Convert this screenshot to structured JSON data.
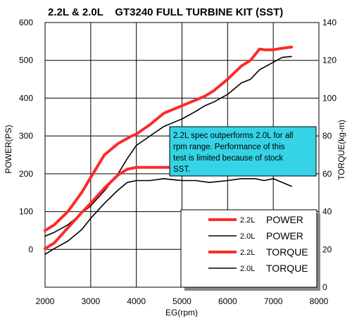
{
  "chart_data": {
    "type": "line",
    "title": "2.2L & 2.0L    GT3240 FULL TURBINE KIT (SST)",
    "xlabel": "EG(rpm)",
    "ylabel_left": "POWER(PS)",
    "ylabel_right": "TORQUE(kg-m)",
    "xlim": [
      2000,
      8000
    ],
    "ylim_left": [
      -100,
      600
    ],
    "ylim_right": [
      0,
      140
    ],
    "x_ticks": [
      "2000",
      "3000",
      "4000",
      "5000",
      "6000",
      "7000",
      "8000"
    ],
    "y_left_ticks": [
      "0",
      "100",
      "200",
      "300",
      "400",
      "500",
      "600"
    ],
    "y_right_ticks": [
      "0",
      "20",
      "40",
      "60",
      "80",
      "100",
      "120",
      "140"
    ],
    "grid": true,
    "legend_position": "bottom-right",
    "annotation": {
      "lines": [
        "2.2L spec outperforms 2.0L for all",
        "rpm range. Performance of this",
        "test is limited because of stock",
        "SST."
      ],
      "background": "#35d3e5"
    },
    "series": [
      {
        "name": "2.2L POWER",
        "legend_engine": "2.2L",
        "legend_label": "POWER",
        "axis": "left",
        "color": "#ff2a2a",
        "points": [
          [
            2000,
            50
          ],
          [
            2200,
            65
          ],
          [
            2500,
            100
          ],
          [
            2800,
            150
          ],
          [
            3000,
            190
          ],
          [
            3300,
            250
          ],
          [
            3600,
            280
          ],
          [
            3900,
            300
          ],
          [
            4000,
            305
          ],
          [
            4300,
            330
          ],
          [
            4600,
            360
          ],
          [
            5000,
            380
          ],
          [
            5300,
            395
          ],
          [
            5500,
            405
          ],
          [
            5700,
            420
          ],
          [
            5900,
            440
          ],
          [
            6000,
            450
          ],
          [
            6300,
            485
          ],
          [
            6500,
            500
          ],
          [
            6700,
            530
          ],
          [
            6800,
            528
          ],
          [
            7000,
            528
          ],
          [
            7200,
            532
          ],
          [
            7400,
            535
          ]
        ]
      },
      {
        "name": "2.0L POWER",
        "legend_engine": "2.0L",
        "legend_label": "POWER",
        "axis": "left",
        "color": "#000000",
        "points": [
          [
            2000,
            35
          ],
          [
            2200,
            45
          ],
          [
            2500,
            65
          ],
          [
            2800,
            95
          ],
          [
            3000,
            115
          ],
          [
            3300,
            155
          ],
          [
            3600,
            200
          ],
          [
            3800,
            240
          ],
          [
            4000,
            275
          ],
          [
            4300,
            300
          ],
          [
            4600,
            325
          ],
          [
            5000,
            345
          ],
          [
            5300,
            365
          ],
          [
            5500,
            380
          ],
          [
            5700,
            390
          ],
          [
            6000,
            410
          ],
          [
            6300,
            440
          ],
          [
            6500,
            450
          ],
          [
            6700,
            475
          ],
          [
            7000,
            495
          ],
          [
            7200,
            508
          ],
          [
            7400,
            510
          ]
        ]
      },
      {
        "name": "2.2L TORQUE",
        "legend_engine": "2.2L",
        "legend_label": "TORQUE",
        "axis": "right",
        "color": "#ff2a2a",
        "points": [
          [
            2000,
            20.4
          ],
          [
            2200,
            23.4
          ],
          [
            2500,
            31.4
          ],
          [
            2800,
            39.4
          ],
          [
            3000,
            44.4
          ],
          [
            3300,
            52.4
          ],
          [
            3600,
            59.4
          ],
          [
            3800,
            62.4
          ],
          [
            4000,
            63.4
          ],
          [
            4500,
            63.4
          ],
          [
            5000,
            63.4
          ],
          [
            5500,
            62.4
          ],
          [
            6000,
            63.4
          ],
          [
            6400,
            63.4
          ],
          [
            6700,
            64.4
          ],
          [
            6900,
            62.4
          ],
          [
            7100,
            61.4
          ],
          [
            7400,
            59.4
          ]
        ]
      },
      {
        "name": "2.0L TORQUE",
        "legend_engine": "2.0L",
        "legend_label": "TORQUE",
        "axis": "right",
        "color": "#000000",
        "points": [
          [
            2000,
            17.4
          ],
          [
            2200,
            20.4
          ],
          [
            2500,
            24.4
          ],
          [
            2800,
            30.4
          ],
          [
            3000,
            36.4
          ],
          [
            3300,
            44.4
          ],
          [
            3600,
            51.4
          ],
          [
            3800,
            55.4
          ],
          [
            4000,
            56.4
          ],
          [
            4300,
            56.4
          ],
          [
            4600,
            57.4
          ],
          [
            5000,
            56.4
          ],
          [
            5300,
            56.4
          ],
          [
            5600,
            55.4
          ],
          [
            6000,
            56.4
          ],
          [
            6300,
            57.4
          ],
          [
            6600,
            57.4
          ],
          [
            6800,
            56.4
          ],
          [
            7000,
            57.4
          ],
          [
            7200,
            55.4
          ],
          [
            7400,
            53.4
          ]
        ]
      }
    ]
  }
}
